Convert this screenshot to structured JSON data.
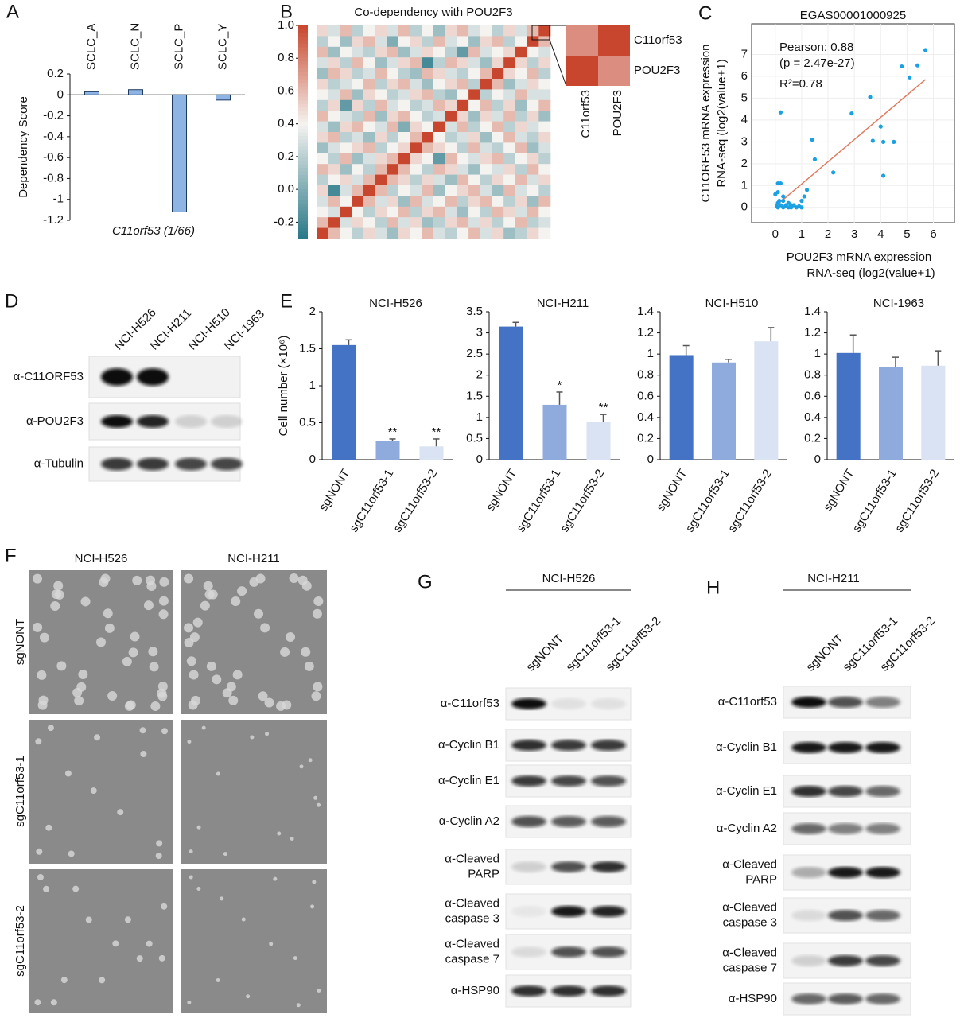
{
  "panel_labels": [
    "A",
    "B",
    "C",
    "D",
    "E",
    "F",
    "G",
    "H"
  ],
  "chart_data": [
    {
      "type": "bar",
      "categories": [
        "SCLC_A",
        "SCLC_N",
        "SCLC_P",
        "SCLC_Y"
      ],
      "values": [
        0.03,
        0.05,
        -1.12,
        -0.05
      ],
      "color": "#8db4e2",
      "stroke": "#1f3a5f",
      "category_label_position": "top",
      "ylim": [
        -1.2,
        0.2
      ],
      "yticks": [
        -1.2,
        -1,
        -0.8,
        -0.6,
        -0.4,
        -0.2,
        0,
        0.2
      ],
      "ylabel": "Dependency Score",
      "xlabel": "C11orf53 (1/66)"
    },
    {
      "type": "heatmap",
      "title": "Co-dependency with POU2F3",
      "clim": [
        -0.3,
        1.0
      ],
      "cticks": [
        {
          "value": -0.2,
          "label": "-0.2"
        },
        {
          "value": 0,
          "label": "0.0"
        },
        {
          "value": 0.2,
          "label": "0.2"
        },
        {
          "value": 0.4,
          "label": "0.4"
        },
        {
          "value": 0.6,
          "label": "0.6"
        },
        {
          "value": 0.8,
          "label": "0.8"
        },
        {
          "value": 1,
          "label": "1.0"
        }
      ],
      "values": [
        [
          0.5,
          0.3,
          0.6,
          0.2,
          0.4,
          0.5,
          0.3,
          0.6,
          0.2,
          0.4,
          0.1,
          0.5,
          0.6,
          0.3,
          0.4,
          0.2,
          0.5,
          0.3,
          0.6,
          1.0
        ],
        [
          0.2,
          0.4,
          0.1,
          0.5,
          0.6,
          0.3,
          0.0,
          0.4,
          0.5,
          0.2,
          0.6,
          0.3,
          0.4,
          0.1,
          0.5,
          0.6,
          0.2,
          0.4,
          1.0,
          0.6
        ],
        [
          0.6,
          0.1,
          0.4,
          0.3,
          0.2,
          0.5,
          0.6,
          0.1,
          0.3,
          0.5,
          0.4,
          0.2,
          -0.1,
          0.6,
          0.3,
          0.4,
          0.5,
          1.0,
          0.4,
          0.3
        ],
        [
          0.3,
          0.5,
          0.2,
          0.6,
          0.4,
          0.1,
          0.3,
          0.5,
          0.6,
          -0.2,
          0.2,
          0.6,
          0.5,
          0.3,
          0.1,
          0.5,
          1.0,
          0.5,
          0.2,
          0.5
        ],
        [
          0.1,
          0.6,
          0.5,
          0.2,
          0.3,
          0.6,
          0.4,
          0.2,
          0.1,
          0.6,
          0.5,
          0.3,
          0.2,
          0.4,
          0.6,
          1.0,
          0.5,
          0.4,
          0.6,
          0.2
        ],
        [
          0.5,
          0.2,
          0.3,
          0.4,
          0.6,
          0.2,
          0.5,
          0.6,
          0.3,
          0.1,
          0.4,
          0.5,
          0.6,
          0.2,
          1.0,
          0.6,
          0.1,
          0.3,
          0.5,
          0.4
        ],
        [
          0.4,
          0.3,
          0.6,
          0.1,
          0.5,
          0.4,
          0.2,
          0.3,
          0.5,
          0.6,
          0.2,
          0.1,
          0.4,
          1.0,
          0.2,
          0.4,
          0.3,
          0.6,
          0.3,
          0.3
        ],
        [
          0.2,
          0.5,
          -0.1,
          0.5,
          0.2,
          0.6,
          0.3,
          0.4,
          0.2,
          0.3,
          0.6,
          0.5,
          1.0,
          0.4,
          0.6,
          0.2,
          0.5,
          0.1,
          0.4,
          0.6
        ],
        [
          0.6,
          0.4,
          0.3,
          0.2,
          0.6,
          0.1,
          0.5,
          0.6,
          0.4,
          0.2,
          0.3,
          1.0,
          0.5,
          0.1,
          0.5,
          0.3,
          0.6,
          0.2,
          0.5,
          0.1
        ],
        [
          0.3,
          0.1,
          0.5,
          0.6,
          0.4,
          0.3,
          0.6,
          0.0,
          0.5,
          0.4,
          1.0,
          0.3,
          0.6,
          0.2,
          0.4,
          0.6,
          0.2,
          0.5,
          0.3,
          0.4
        ],
        [
          0.5,
          0.6,
          0.2,
          0.3,
          0.1,
          0.5,
          0.2,
          0.4,
          0.6,
          1.0,
          0.4,
          0.2,
          0.3,
          0.5,
          0.1,
          0.4,
          0.6,
          0.3,
          0.2,
          0.5
        ],
        [
          0.1,
          0.3,
          0.4,
          0.5,
          0.6,
          0.2,
          0.4,
          0.5,
          1.0,
          0.6,
          0.5,
          0.4,
          0.2,
          0.6,
          0.3,
          0.2,
          0.4,
          0.6,
          0.1,
          0.3
        ],
        [
          0.4,
          0.2,
          0.6,
          0.1,
          0.3,
          0.5,
          0.6,
          1.0,
          0.5,
          0.4,
          -0.1,
          0.6,
          0.4,
          0.3,
          0.5,
          0.6,
          0.2,
          0.4,
          0.5,
          0.2
        ],
        [
          0.6,
          0.5,
          0.1,
          0.4,
          0.2,
          0.6,
          1.0,
          0.6,
          0.4,
          0.2,
          0.6,
          0.5,
          0.3,
          0.1,
          0.4,
          0.3,
          0.5,
          0.2,
          0.6,
          0.4
        ],
        [
          0.2,
          0.4,
          0.5,
          0.3,
          0.6,
          1.0,
          0.6,
          0.5,
          0.2,
          0.5,
          0.3,
          0.1,
          0.6,
          0.4,
          0.2,
          0.5,
          0.4,
          0.6,
          0.3,
          0.5
        ],
        [
          0.5,
          -0.2,
          0.3,
          0.6,
          1.0,
          0.6,
          0.2,
          0.4,
          0.3,
          0.6,
          0.1,
          0.4,
          0.5,
          0.6,
          0.3,
          0.1,
          0.6,
          0.3,
          0.4,
          0.2
        ],
        [
          0.3,
          0.6,
          0.4,
          1.0,
          0.6,
          0.3,
          0.5,
          0.1,
          0.6,
          0.3,
          0.4,
          0.6,
          0.2,
          0.5,
          0.6,
          0.4,
          0.2,
          0.5,
          0.1,
          0.6
        ],
        [
          0.4,
          0.3,
          1.0,
          0.4,
          0.2,
          0.5,
          0.4,
          0.6,
          0.2,
          0.5,
          0.6,
          0.3,
          0.1,
          0.4,
          0.2,
          0.6,
          0.5,
          0.3,
          0.6,
          0.4
        ],
        [
          0.6,
          1.0,
          0.3,
          0.5,
          0.4,
          0.2,
          0.6,
          0.3,
          0.5,
          0.1,
          0.2,
          0.5,
          0.6,
          0.3,
          0.5,
          0.2,
          0.4,
          0.6,
          0.2,
          0.3
        ],
        [
          1.0,
          0.6,
          0.4,
          0.2,
          0.5,
          0.3,
          0.1,
          0.5,
          0.4,
          0.6,
          0.3,
          0.2,
          0.4,
          0.6,
          0.3,
          0.5,
          0.1,
          0.2,
          0.5,
          0.4
        ]
      ],
      "inset": {
        "rows": [
          "C11orf53",
          "POU2F3"
        ],
        "columns": [
          "C11orf53",
          "POU2F3"
        ],
        "values": [
          [
            0.75,
            1.0
          ],
          [
            1.0,
            0.75
          ]
        ]
      }
    },
    {
      "type": "scatter",
      "title": "EGAS00001000925",
      "color": "#1ba1e2",
      "trendline_color": "#e07a5f",
      "grid": true,
      "x": [
        0.1,
        0.2,
        0.3,
        0.1,
        0.4,
        0.5,
        0.6,
        0,
        0.1,
        0.2,
        0.1,
        0.3,
        0.2,
        0.7,
        0.8,
        0.9,
        1.0,
        1.1,
        1.2,
        1.4,
        1.5,
        2.2,
        2.9,
        3.6,
        3.7,
        4.0,
        4.1,
        4.1,
        4.5,
        4.8,
        5.1,
        5.4,
        5.7,
        0.3,
        0.4,
        0.6,
        0.05,
        0.15,
        1.0,
        0.5
      ],
      "y": [
        0,
        0.1,
        0,
        0.2,
        0.1,
        0,
        0.1,
        0.6,
        1.1,
        1.1,
        0.7,
        0.5,
        4.35,
        0.1,
        0,
        0.05,
        0,
        0.5,
        0.8,
        3.1,
        2.2,
        1.6,
        4.3,
        5.05,
        3.05,
        3.7,
        1.45,
        3.0,
        3.0,
        6.45,
        5.95,
        6.5,
        7.2,
        0.3,
        0.05,
        0,
        0.05,
        0.3,
        0.3,
        0.2
      ],
      "xlim": [
        -0.9,
        6.8
      ],
      "ylim": [
        -0.7,
        8.4
      ],
      "xticks": [
        0,
        1,
        2,
        3,
        4,
        5,
        6
      ],
      "yticks": [
        0,
        1,
        2,
        3,
        4,
        5,
        6,
        7
      ],
      "annotations": [
        "Pearson: 0.88",
        "(p = 2.47e-27)",
        "R²=0.78"
      ],
      "xlabel": [
        "POU2F3 mRNA expression",
        "RNA-seq (log2(value+1)"
      ],
      "ylabel": [
        "C11ORF53 mRNA expression",
        "RNA-seq (log2(value+1)"
      ]
    },
    {
      "type": "bar",
      "title": "NCI-H526",
      "categories": [
        "sgNONT",
        "sgC11orf53-1",
        "sgC11orf53-2"
      ],
      "values": [
        1.55,
        0.25,
        0.18
      ],
      "errors": [
        0.07,
        0.03,
        0.1
      ],
      "colors": [
        "#4472c4",
        "#8faadc",
        "#dae3f3"
      ],
      "significance": [
        {
          "index": 1,
          "text": "**"
        },
        {
          "index": 2,
          "text": "**"
        }
      ],
      "ylim": [
        0,
        2
      ],
      "yticks": [
        0,
        0.5,
        1,
        1.5,
        2
      ],
      "ylabel": "Cell number (×10⁶)"
    },
    {
      "type": "bar",
      "title": "NCI-H211",
      "categories": [
        "sgNONT",
        "sgC11orf53-1",
        "sgC11orf53-2"
      ],
      "values": [
        3.15,
        1.3,
        0.9
      ],
      "errors": [
        0.1,
        0.3,
        0.17
      ],
      "colors": [
        "#4472c4",
        "#8faadc",
        "#dae3f3"
      ],
      "significance": [
        {
          "index": 1,
          "text": "*"
        },
        {
          "index": 2,
          "text": "**"
        }
      ],
      "ylim": [
        0,
        3.5
      ],
      "yticks": [
        0,
        0.5,
        1,
        1.5,
        2,
        2.5,
        3,
        3.5
      ]
    },
    {
      "type": "bar",
      "title": "NCI-H510",
      "categories": [
        "sgNONT",
        "sgC11orf53-1",
        "sgC11orf53-2"
      ],
      "values": [
        0.99,
        0.92,
        1.12
      ],
      "errors": [
        0.09,
        0.03,
        0.13
      ],
      "colors": [
        "#4472c4",
        "#8faadc",
        "#dae3f3"
      ],
      "ylim": [
        0,
        1.4
      ],
      "yticks": [
        0,
        0.2,
        0.4,
        0.6,
        0.8,
        1,
        1.2,
        1.4
      ]
    },
    {
      "type": "bar",
      "title": "NCI-1963",
      "categories": [
        "sgNONT",
        "sgC11orf53-1",
        "sgC11orf53-2"
      ],
      "values": [
        1.01,
        0.88,
        0.89
      ],
      "errors": [
        0.17,
        0.09,
        0.14
      ],
      "colors": [
        "#4472c4",
        "#8faadc",
        "#dae3f3"
      ],
      "ylim": [
        0,
        1.4
      ],
      "yticks": [
        0,
        0.2,
        0.4,
        0.6,
        0.8,
        1,
        1.2,
        1.4
      ]
    }
  ],
  "blot_D": {
    "lanes": [
      "NCI-H526",
      "NCI-H211",
      "NCI-H510",
      "NCI-1963"
    ],
    "rows": [
      [
        "α-C11ORF53"
      ],
      [
        "α-POU2F3"
      ],
      [
        "α-Tubulin"
      ]
    ]
  },
  "images_F": {
    "columns": [
      "NCI-H526",
      "NCI-H211"
    ],
    "rows": [
      "sgNONT",
      "sgC11orf53-1",
      "sgC11orf53-2"
    ]
  },
  "blot_G": {
    "title": "NCI-H526",
    "lanes": [
      "sgNONT",
      "sgC11orf53-1",
      "sgC11orf53-2"
    ],
    "rows": [
      [
        "α-C11orf53"
      ],
      [
        "α-Cyclin B1"
      ],
      [
        "α-Cyclin E1"
      ],
      [
        "α-Cyclin A2"
      ],
      [
        "α-Cleaved",
        "PARP"
      ],
      [
        "α-Cleaved",
        "caspase 3"
      ],
      [
        "α-Cleaved",
        "caspase 7"
      ],
      [
        "α-HSP90"
      ]
    ]
  },
  "blot_H": {
    "title": "NCI-H211",
    "lanes": [
      "sgNONT",
      "sgC11orf53-1",
      "sgC11orf53-2"
    ],
    "rows": [
      [
        "α-C11orf53"
      ],
      [
        "α-Cyclin B1"
      ],
      [
        "α-Cyclin E1"
      ],
      [
        "α-Cyclin A2"
      ],
      [
        "α-Cleaved",
        "PARP"
      ],
      [
        "α-Cleaved",
        "caspase 3"
      ],
      [
        "α-Cleaved",
        "caspase 7"
      ],
      [
        "α-HSP90"
      ]
    ]
  }
}
